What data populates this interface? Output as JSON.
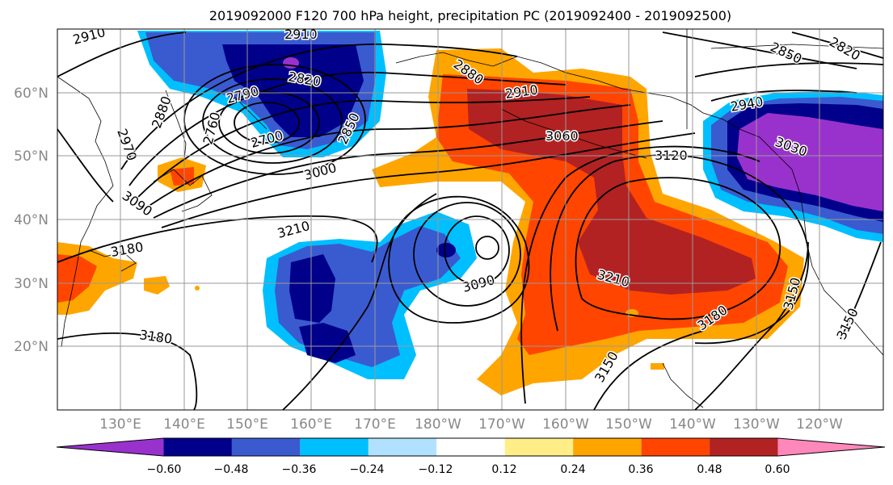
{
  "title": "2019092000 F120 700 hPa height, precipitation PC (2019092400 - 2019092500)",
  "lat_labels": [
    "60°N",
    "50°N",
    "40°N",
    "30°N",
    "20°N"
  ],
  "lon_labels": [
    "130°E",
    "140°E",
    "150°E",
    "160°E",
    "170°E",
    "180°W",
    "170°W",
    "160°W",
    "150°W",
    "140°W",
    "130°W",
    "120°W"
  ],
  "contour_labels": [
    "2910",
    "2910",
    "2880",
    "2760",
    "2790",
    "2820",
    "2970",
    "2850",
    "2880",
    "2700",
    "2910",
    "3060",
    "3000",
    "3090",
    "3120",
    "3210",
    "3180",
    "3090",
    "3210",
    "3180",
    "3150",
    "3150",
    "3180",
    "3150",
    "3030",
    "2940",
    "2850",
    "2820"
  ],
  "colorbar": {
    "colors": [
      "#9932cc",
      "#00008b",
      "#3a5bd0",
      "#00bfff",
      "#b0e2ff",
      "#ffffff",
      "#ffee88",
      "#ffa500",
      "#ff4500",
      "#b22222",
      "#ff88bb"
    ],
    "tick_labels": [
      "−0.60",
      "−0.48",
      "−0.36",
      "−0.24",
      "−0.12",
      "0.12",
      "0.24",
      "0.36",
      "0.48",
      "0.60"
    ]
  }
}
